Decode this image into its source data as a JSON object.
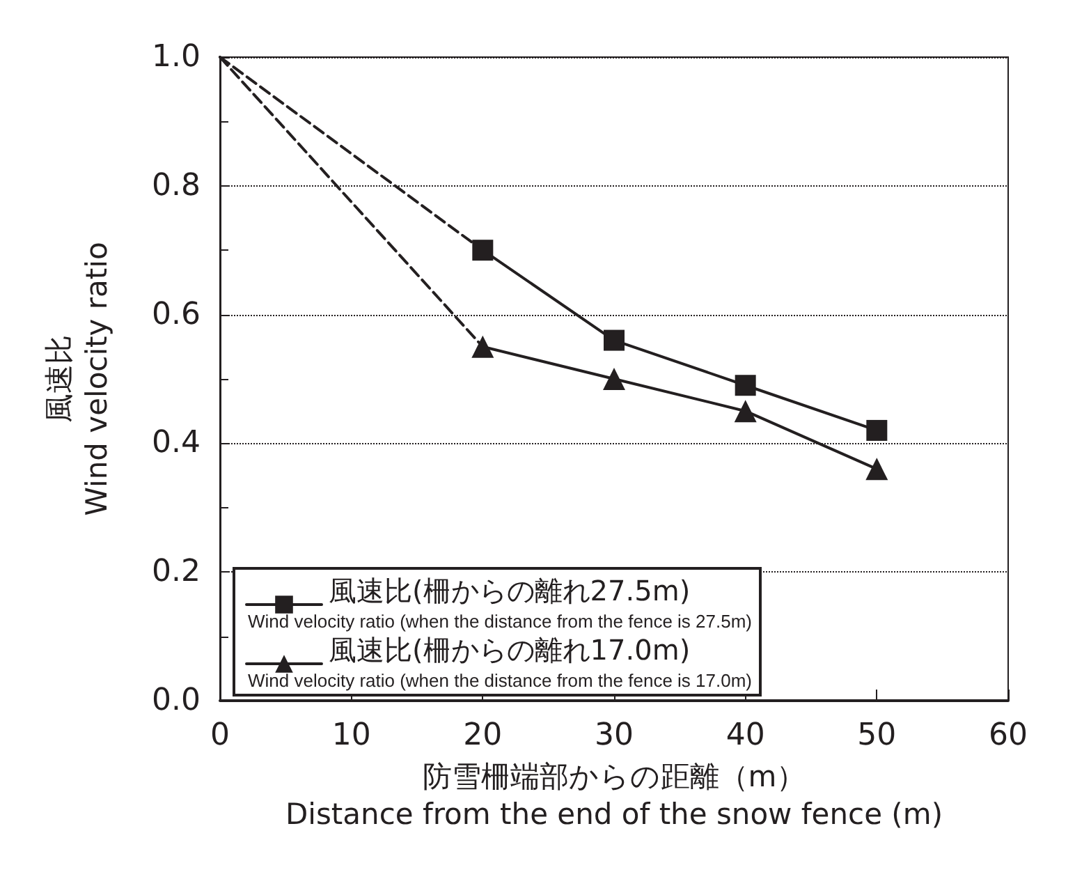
{
  "chart_data": {
    "type": "line",
    "xlabel": "防雪柵端部からの距離（m）\nDistance from the end of the snow fence (m)",
    "ylabel": "風速比\nWind velocity ratio",
    "xlim": [
      0,
      60
    ],
    "xticks": [
      0,
      10,
      20,
      30,
      40,
      50,
      60
    ],
    "ylim": [
      0,
      1.0
    ],
    "yticks": [
      {
        "value": 0,
        "label": "0.0"
      },
      {
        "value": 0.1,
        "label": null
      },
      {
        "value": 0.2,
        "label": "0.2"
      },
      {
        "value": 0.3,
        "label": null
      },
      {
        "value": 0.4,
        "label": "0.4"
      },
      {
        "value": 0.5,
        "label": null
      },
      {
        "value": 0.6,
        "label": "0.6"
      },
      {
        "value": 0.7,
        "label": null
      },
      {
        "value": 0.8,
        "label": "0.8"
      },
      {
        "value": 0.9,
        "label": null
      },
      {
        "value": 1.0,
        "label": "1.0"
      }
    ],
    "grid": "y",
    "legend": "bottom left",
    "line_style": "solid",
    "series": [
      {
        "name": "風速比(柵からの離れ27.5m)\nWind velocity ratio (when the distance from the fence is 27.5m)",
        "color": "#231f20",
        "marker": "square",
        "x": [
          20,
          30,
          40,
          50
        ],
        "values": [
          0.7,
          0.56,
          0.49,
          0.42
        ]
      },
      {
        "name": "風速比(柵からの離れ17.0m)\nWind velocity ratio (when the distance from the fence is 17.0m)",
        "color": "#231f20",
        "marker": "triangle",
        "x": [
          20,
          30,
          40,
          50
        ],
        "values": [
          0.55,
          0.5,
          0.45,
          0.36
        ]
      },
      {
        "color": "#231f20",
        "marker": "none",
        "line_style": "dashed",
        "x": [
          0,
          20
        ],
        "values": [
          1.0,
          0.7
        ]
      },
      {
        "color": "#231f20",
        "marker": "none",
        "line_style": "dashed",
        "x": [
          0,
          20
        ],
        "values": [
          1.0,
          0.55
        ]
      }
    ]
  }
}
